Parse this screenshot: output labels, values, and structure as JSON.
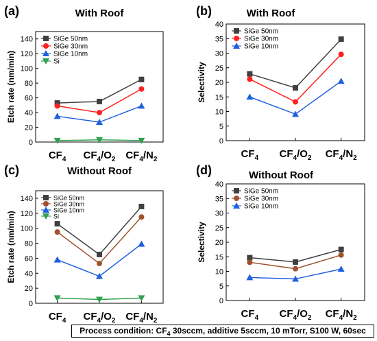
{
  "chart_data": [
    {
      "type": "line",
      "panel": "(a)",
      "title": "With Roof",
      "ylabel": "Etch rate (nm/min)",
      "ylim": [
        0,
        150
      ],
      "yticks": [
        0,
        20,
        40,
        60,
        80,
        100,
        120,
        140
      ],
      "categories": [
        "CF4",
        "CF4/O2",
        "CF4/N2"
      ],
      "legend_position": "top-left",
      "series": [
        {
          "name": "SiGe 50nm",
          "color": "#404040",
          "marker": "square",
          "values": [
            53,
            55,
            85
          ]
        },
        {
          "name": "SiGe 30nm",
          "color": "#ff2020",
          "marker": "circle",
          "values": [
            49,
            40,
            72
          ]
        },
        {
          "name": "SiGe 10nm",
          "color": "#2060e0",
          "marker": "triangle-up",
          "values": [
            35,
            27,
            49
          ]
        },
        {
          "name": "Si",
          "color": "#30a050",
          "marker": "triangle-down",
          "values": [
            2,
            3,
            2
          ]
        }
      ]
    },
    {
      "type": "line",
      "panel": "(b)",
      "title": "With Roof",
      "ylabel": "Selectivity",
      "ylim": [
        0,
        40
      ],
      "yticks": [
        0,
        5,
        10,
        15,
        20,
        25,
        30,
        35,
        40
      ],
      "categories": [
        "CF4",
        "CF4/O2",
        "CF4/N2"
      ],
      "legend_position": "top-left",
      "series": [
        {
          "name": "SiGe 50nm",
          "color": "#404040",
          "marker": "square",
          "values": [
            22.9,
            18.1,
            34.8
          ]
        },
        {
          "name": "SiGe 30nm",
          "color": "#ff2020",
          "marker": "circle",
          "values": [
            21.1,
            13.3,
            29.6
          ]
        },
        {
          "name": "SiGe 10nm",
          "color": "#2060e0",
          "marker": "triangle-up",
          "values": [
            15.0,
            9.1,
            20.4
          ]
        }
      ]
    },
    {
      "type": "line",
      "panel": "(c)",
      "title": "Without Roof",
      "ylabel": "Etch rate (nm/min)",
      "ylim": [
        0,
        150
      ],
      "yticks": [
        0,
        20,
        40,
        60,
        80,
        100,
        120,
        140
      ],
      "categories": [
        "CF4",
        "CF4/O2",
        "CF4/N2"
      ],
      "legend_position": "top-left",
      "series": [
        {
          "name": "SiGe 50nm",
          "color": "#404040",
          "marker": "square",
          "values": [
            106,
            65,
            129
          ]
        },
        {
          "name": "SiGe 30nm",
          "color": "#a0522d",
          "marker": "circle",
          "values": [
            95,
            53,
            115
          ]
        },
        {
          "name": "SiGe 10nm",
          "color": "#2060e0",
          "marker": "triangle-up",
          "values": [
            58,
            36,
            79
          ]
        },
        {
          "name": "Si",
          "color": "#30a050",
          "marker": "triangle-down",
          "values": [
            7,
            5,
            7
          ]
        }
      ]
    },
    {
      "type": "line",
      "panel": "(d)",
      "title": "Without Roof",
      "ylabel": "Selectivity",
      "ylim": [
        0,
        40
      ],
      "yticks": [
        0,
        5,
        10,
        15,
        20,
        25,
        30,
        35,
        40
      ],
      "categories": [
        "CF4",
        "CF4/O2",
        "CF4/N2"
      ],
      "legend_position": "top-left",
      "series": [
        {
          "name": "SiGe 50nm",
          "color": "#404040",
          "marker": "square",
          "values": [
            14.7,
            13.2,
            17.5
          ]
        },
        {
          "name": "SiGe 30nm",
          "color": "#a0522d",
          "marker": "circle",
          "values": [
            13.1,
            10.9,
            15.6
          ]
        },
        {
          "name": "SiGe 10nm",
          "color": "#2060e0",
          "marker": "triangle-up",
          "values": [
            7.9,
            7.4,
            10.8
          ]
        }
      ]
    }
  ],
  "footer": {
    "prefix": "Process condition: CF",
    "sub": "4",
    "suffix": " 30sccm, additive 5sccm, 10 mTorr, S100 W, 60sec"
  }
}
